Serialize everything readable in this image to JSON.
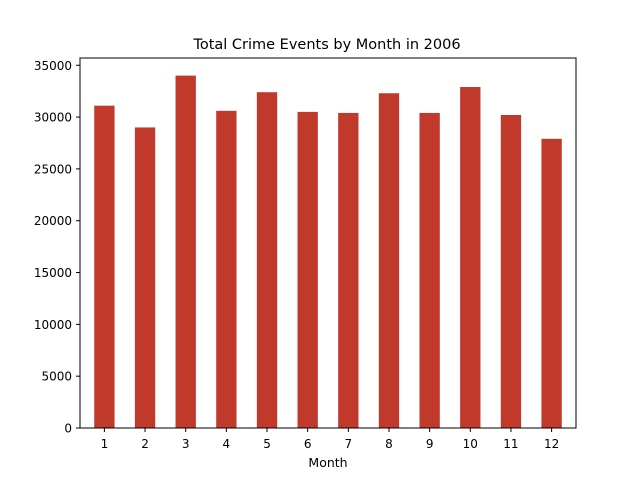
{
  "chart_data": {
    "type": "bar",
    "title": "Total Crime Events by Month in 2006",
    "xlabel": "Month",
    "ylabel": "",
    "categories": [
      "1",
      "2",
      "3",
      "4",
      "5",
      "6",
      "7",
      "8",
      "9",
      "10",
      "11",
      "12"
    ],
    "values": [
      31100,
      29000,
      34000,
      30600,
      32400,
      30500,
      30400,
      32300,
      30400,
      32900,
      30200,
      27900
    ],
    "ylim": [
      0,
      35700
    ],
    "yticks": [
      0,
      5000,
      10000,
      15000,
      20000,
      25000,
      30000,
      35000
    ],
    "ytick_labels": [
      "0",
      "5000",
      "10000",
      "15000",
      "20000",
      "25000",
      "30000",
      "35000"
    ],
    "grid": false,
    "legend": "none",
    "bar_color": "#c0392b",
    "axis_color": "#000000"
  }
}
